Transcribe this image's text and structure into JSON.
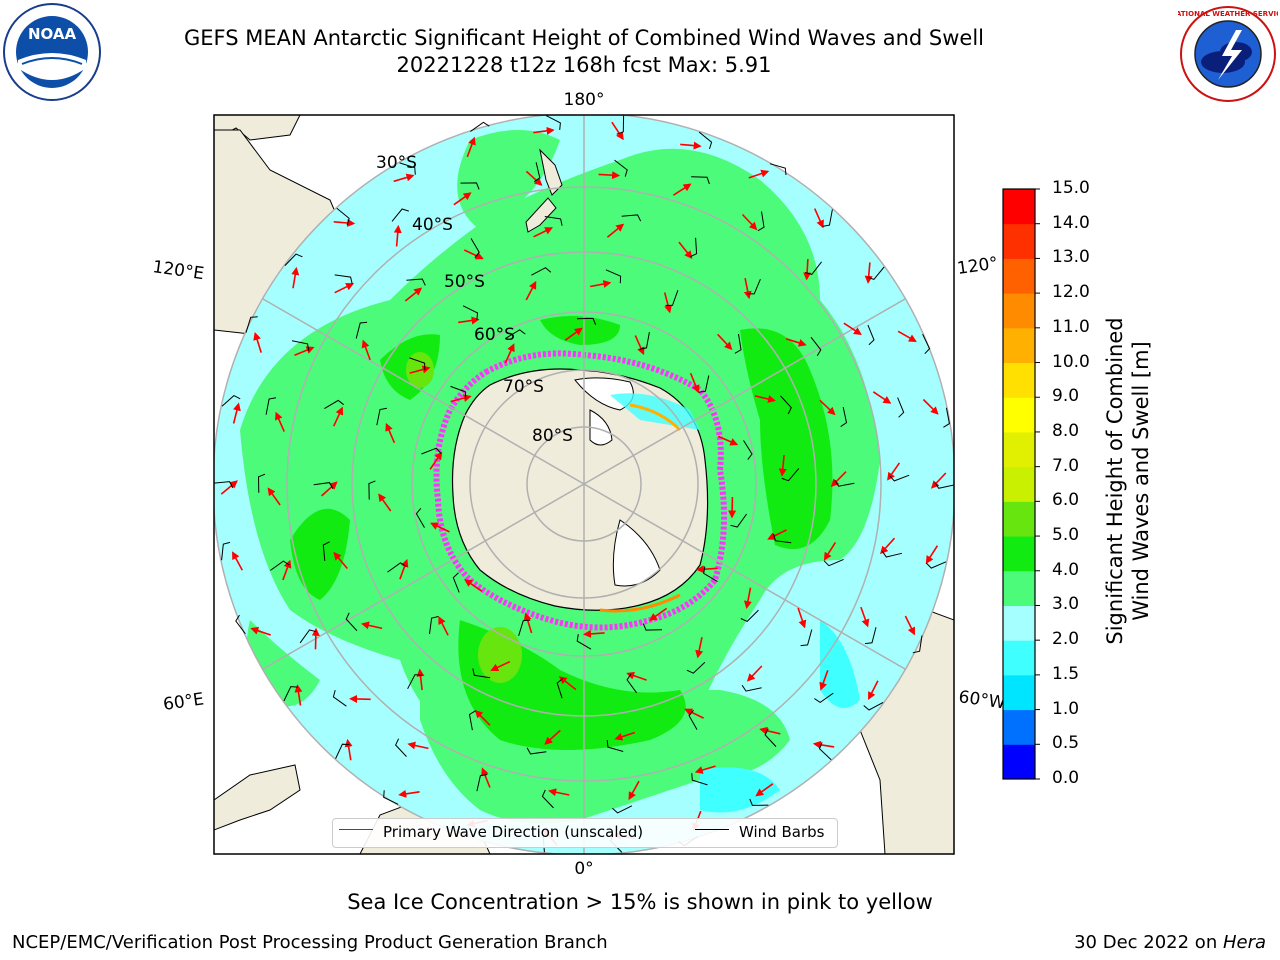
{
  "title": {
    "line1": "GEFS MEAN Antarctic Significant Height of Combined Wind Waves and Swell",
    "line2": "20221228 t12z 168h fcst   Max: 5.91"
  },
  "map": {
    "projection": "south-polar-stereographic",
    "longitude_labels": [
      "180°",
      "120°E",
      "120°",
      "60°E",
      "60°W",
      "0°"
    ],
    "latitude_labels": [
      "30°S",
      "40°S",
      "50°S",
      "60°S",
      "70°S",
      "80°S"
    ],
    "colors": {
      "land": "#efecdc",
      "band_2_3": "#a6ffff",
      "band_3_4": "#4dfb7a",
      "band_4_5": "#12eb12",
      "band_5_6": "#66e60e",
      "grid": "#b0b0b0",
      "wave_arrow": "#ff0000",
      "wind_barb": "#000000",
      "sea_ice": "#ff33ff"
    }
  },
  "legend": {
    "primary_wave": "Primary Wave Direction (unscaled)",
    "wind_barbs": "Wind Barbs"
  },
  "colorbar": {
    "title_line1": "Significant Height of Combined",
    "title_line2": "Wind Waves and Swell [m]",
    "bounds": [
      0.0,
      0.5,
      1.0,
      1.5,
      2.0,
      3.0,
      4.0,
      5.0,
      6.0,
      7.0,
      8.0,
      9.0,
      10.0,
      11.0,
      12.0,
      13.0,
      14.0,
      15.0
    ],
    "tick_labels": [
      "15.0",
      "14.0",
      "13.0",
      "12.0",
      "11.0",
      "10.0",
      "9.0",
      "8.0",
      "7.0",
      "6.0",
      "5.0",
      "4.0",
      "3.0",
      "2.0",
      "1.5",
      "1.0",
      "0.5",
      "0.0"
    ],
    "colors": [
      "#0000ff",
      "#0070ff",
      "#00e5ff",
      "#40ffff",
      "#a6ffff",
      "#4dfb7a",
      "#12eb12",
      "#66e60e",
      "#c8f000",
      "#e0f000",
      "#ffff00",
      "#ffe000",
      "#ffb000",
      "#ff8c00",
      "#ff6000",
      "#ff3000",
      "#ff0000"
    ]
  },
  "note": "Sea Ice Concentration > 15% is shown in pink to yellow",
  "footer": {
    "left": "NCEP/EMC/Verification Post Processing Product Generation Branch",
    "right_prefix": "30 Dec 2022 on ",
    "right_host": "Hera"
  },
  "logos": {
    "noaa_text": "NOAA",
    "nws_text": "NATIONAL WEATHER SERVICE"
  }
}
